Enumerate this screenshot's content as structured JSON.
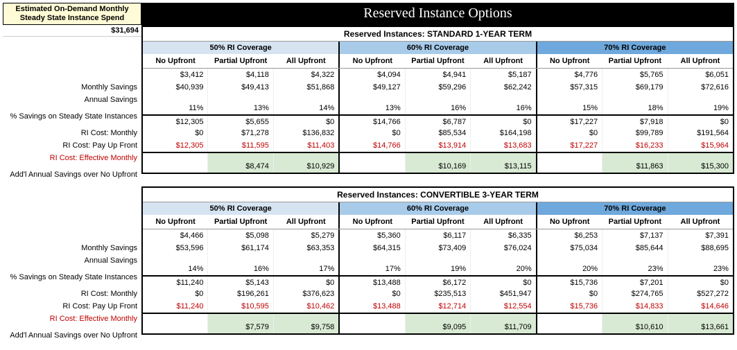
{
  "title": "Reserved Instance Options",
  "estimate_label": "Estimated On-Demand Monthly Steady State Instance Spend",
  "estimate_value": "$31,694",
  "coverage_labels": [
    "50% RI Coverage",
    "60% RI Coverage",
    "70% RI Coverage"
  ],
  "payment_headers": [
    "No Upfront",
    "Partial Upfront",
    "All Upfront"
  ],
  "row_labels": {
    "monthly_savings": "Monthly Savings",
    "annual_savings": "Annual Savings",
    "pct_savings": "% Savings on Steady State Instances",
    "ri_monthly": "RI Cost: Monthly",
    "ri_upfront": "RI Cost: Pay Up Front",
    "ri_effective": "RI Cost: Effective Monthly",
    "addl_savings": "Add'l Annual Savings over No Upfront"
  },
  "sections": [
    {
      "title": "Reserved Instances: STANDARD 1-YEAR TERM",
      "rows": {
        "monthly_savings": [
          "$3,412",
          "$4,118",
          "$4,322",
          "$4,094",
          "$4,941",
          "$5,187",
          "$4,776",
          "$5,765",
          "$6,051"
        ],
        "annual_savings": [
          "$40,939",
          "$49,413",
          "$51,868",
          "$49,127",
          "$59,296",
          "$62,242",
          "$57,315",
          "$69,179",
          "$72,616"
        ],
        "pct_savings": [
          "11%",
          "13%",
          "14%",
          "13%",
          "16%",
          "16%",
          "15%",
          "18%",
          "19%"
        ],
        "ri_monthly": [
          "$12,305",
          "$5,655",
          "$0",
          "$14,766",
          "$6,787",
          "$0",
          "$17,227",
          "$7,918",
          "$0"
        ],
        "ri_upfront": [
          "$0",
          "$71,278",
          "$136,832",
          "$0",
          "$85,534",
          "$164,198",
          "$0",
          "$99,789",
          "$191,564"
        ],
        "ri_effective": [
          "$12,305",
          "$11,595",
          "$11,403",
          "$14,766",
          "$13,914",
          "$13,683",
          "$17,227",
          "$16,233",
          "$15,964"
        ],
        "addl_savings": [
          "",
          "$8,474",
          "$10,929",
          "",
          "$10,169",
          "$13,115",
          "",
          "$11,863",
          "$15,300"
        ]
      }
    },
    {
      "title": "Reserved Instances: CONVERTIBLE 3-YEAR TERM",
      "rows": {
        "monthly_savings": [
          "$4,466",
          "$5,098",
          "$5,279",
          "$5,360",
          "$6,117",
          "$6,335",
          "$6,253",
          "$7,137",
          "$7,391"
        ],
        "annual_savings": [
          "$53,596",
          "$61,174",
          "$63,353",
          "$64,315",
          "$73,409",
          "$76,024",
          "$75,034",
          "$85,644",
          "$88,695"
        ],
        "pct_savings": [
          "14%",
          "16%",
          "17%",
          "17%",
          "19%",
          "20%",
          "20%",
          "23%",
          "23%"
        ],
        "ri_monthly": [
          "$11,240",
          "$5,143",
          "$0",
          "$13,488",
          "$6,172",
          "$0",
          "$15,736",
          "$7,201",
          "$0"
        ],
        "ri_upfront": [
          "$0",
          "$196,261",
          "$376,623",
          "$0",
          "$235,513",
          "$451,947",
          "$0",
          "$274,765",
          "$527,272"
        ],
        "ri_effective": [
          "$11,240",
          "$10,595",
          "$10,462",
          "$13,488",
          "$12,714",
          "$12,554",
          "$15,736",
          "$14,833",
          "$14,646"
        ],
        "addl_savings": [
          "",
          "$7,579",
          "$9,758",
          "",
          "$9,095",
          "$11,709",
          "",
          "$10,610",
          "$13,661"
        ]
      }
    }
  ]
}
